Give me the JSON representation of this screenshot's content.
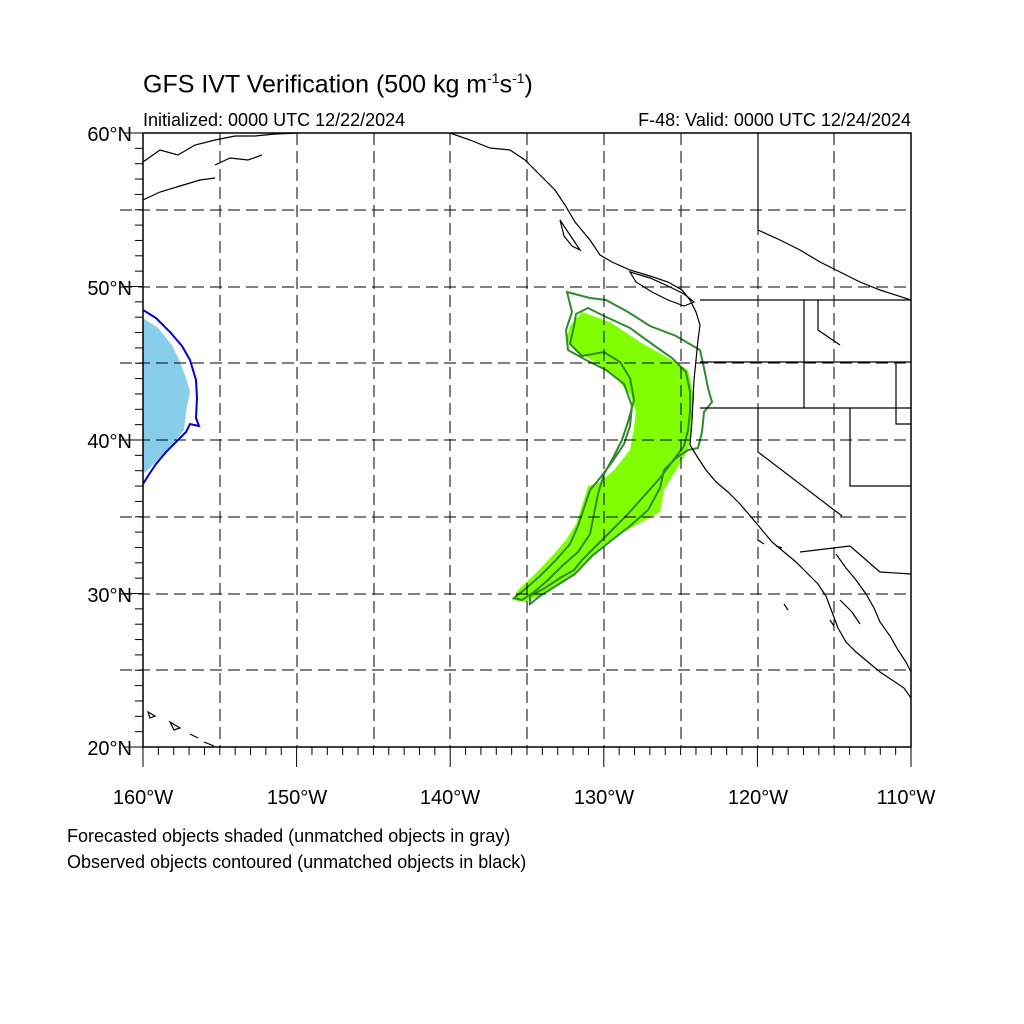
{
  "title": {
    "main": "GFS IVT Verification (500 kg m",
    "sup1": "-1",
    "mid": "s",
    "sup2": "-1",
    "end": ")"
  },
  "initialized": "Initialized: 0000 UTC 12/22/2024",
  "valid": "F-48: Valid: 0000 UTC 12/24/2024",
  "lat_labels": [
    "60°N",
    "50°N",
    "40°N",
    "30°N",
    "20°N"
  ],
  "lon_labels": [
    "160°W",
    "150°W",
    "140°W",
    "130°W",
    "120°W",
    "110°W"
  ],
  "notes": [
    "Forecasted objects shaded (unmatched objects in gray)",
    "Observed objects contoured (unmatched objects in black)"
  ],
  "map": {
    "extent": {
      "lon_min": -160,
      "lon_max": -110,
      "lat_min": 20,
      "lat_max": 60
    },
    "grid_interval_deg": 5,
    "colors": {
      "forecast_green": "#80ff00",
      "observed_green": "#2e8b2e",
      "forecast_blue": "#87ceeb",
      "observed_blue": "#0000cd",
      "coastline": "#000000",
      "grid": "#000000"
    }
  }
}
